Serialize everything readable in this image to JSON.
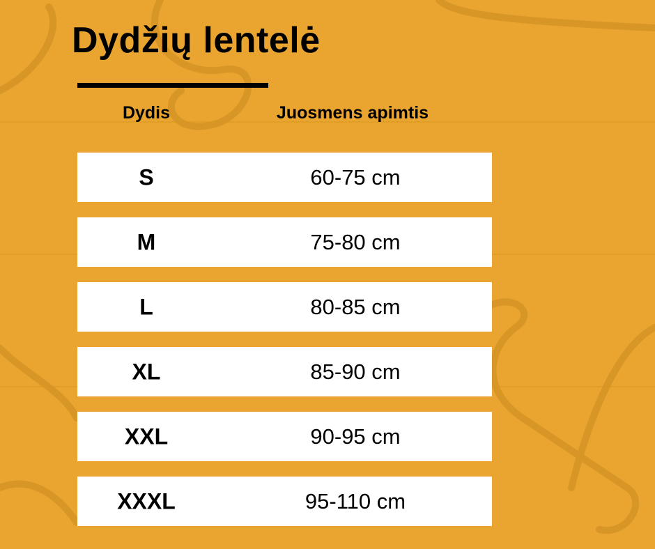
{
  "title": "Dydžių lentelė",
  "headers": {
    "size": "Dydis",
    "waist": "Juosmens apimtis"
  },
  "rows": [
    {
      "size": "S",
      "waist": "60-75 cm"
    },
    {
      "size": "M",
      "waist": "75-80 cm"
    },
    {
      "size": "L",
      "waist": "80-85 cm"
    },
    {
      "size": "XL",
      "waist": "85-90 cm"
    },
    {
      "size": "XXL",
      "waist": "90-95 cm"
    },
    {
      "size": "XXXL",
      "waist": "95-110 cm"
    }
  ],
  "colors": {
    "background": "#e9a52f",
    "row": "#ffffff",
    "text": "#000000"
  },
  "background_image": "clothes-hangers-on-wood"
}
